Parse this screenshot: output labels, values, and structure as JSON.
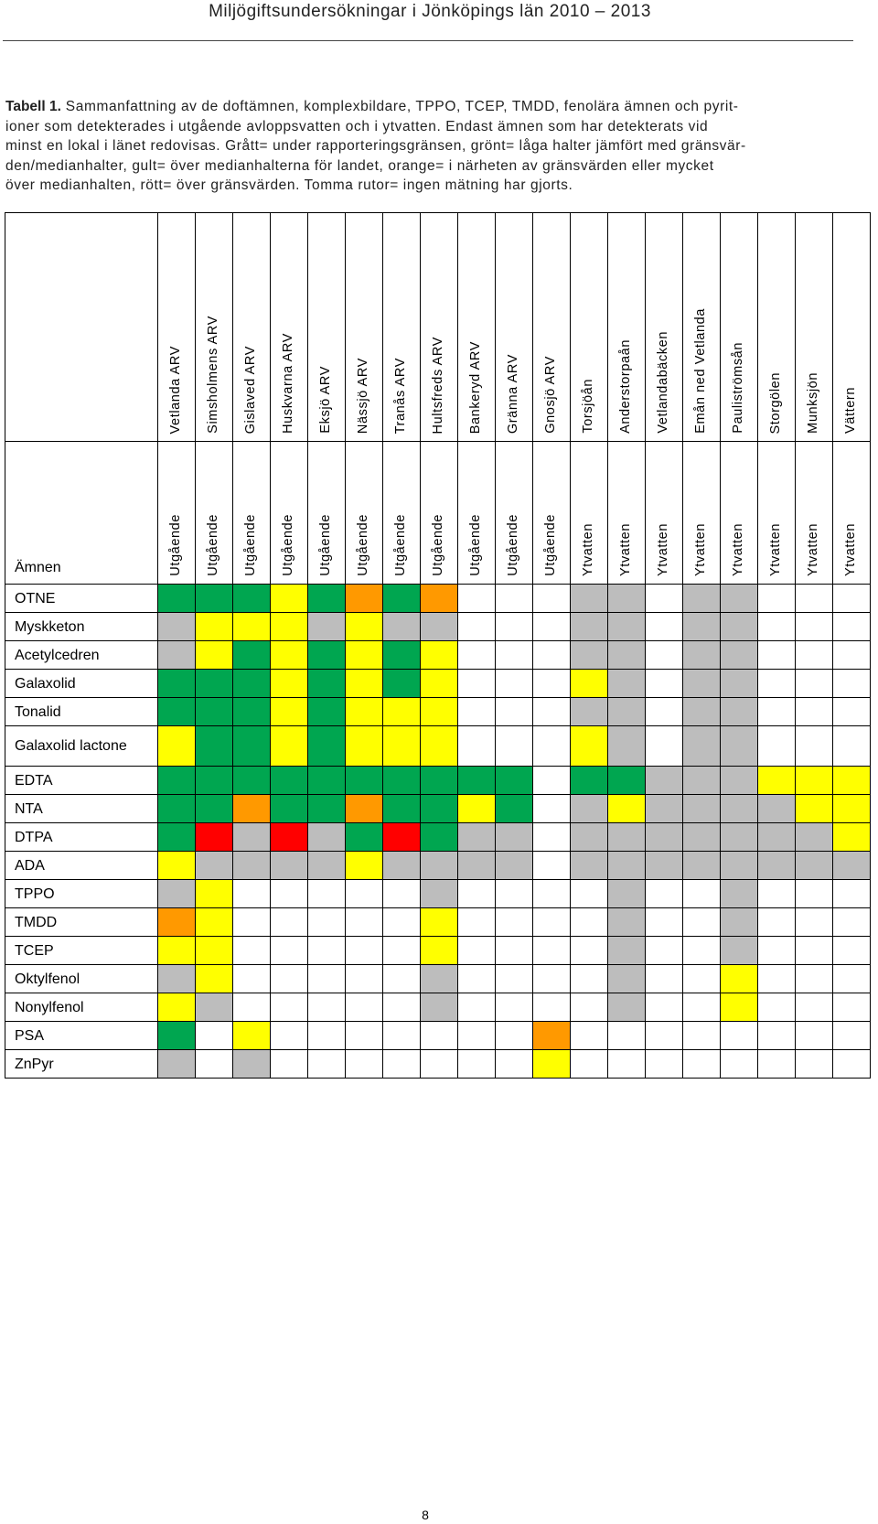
{
  "header": {
    "title": "Miljögiftsundersökningar i Jönköpings län 2010 – 2013"
  },
  "caption": {
    "label": "Tabell 1.",
    "lines": [
      " Sammanfattning av de doftämnen, komplexbildare, TPPO, TCEP, TMDD, fenolära ämnen och pyrit-",
      "ioner som detekterades i utgående avloppsvatten och i ytvatten. Endast ämnen som har detekterats vid",
      "minst en lokal i länet redovisas. Grått= under rapporteringsgränsen, grönt= låga halter jämfört med gränsvär-",
      "den/medianhalter, gult= över medianhalterna för landet, orange= i närheten av gränsvärden eller mycket",
      "över medianhalten, rött= över gränsvärden. Tomma rutor= ingen mätning har gjorts."
    ]
  },
  "table": {
    "substance_header": "Ämnen",
    "colors": {
      "G": "#00A650",
      "Y": "#FFFF00",
      "O": "#FF9900",
      "R": "#FF0000",
      "S": "#BDBDBD",
      "W": "#FFFFFF"
    },
    "columns": [
      {
        "site": "Vetlanda ARV",
        "sample": "Utgående"
      },
      {
        "site": "Simsholmens ARV",
        "sample": "Utgående"
      },
      {
        "site": "Gislaved ARV",
        "sample": "Utgående"
      },
      {
        "site": "Huskvarna ARV",
        "sample": "Utgående"
      },
      {
        "site": "Eksjö ARV",
        "sample": "Utgående"
      },
      {
        "site": "Nässjö ARV",
        "sample": "Utgående"
      },
      {
        "site": "Tranås ARV",
        "sample": "Utgående"
      },
      {
        "site": "Hultsfreds ARV",
        "sample": "Utgående"
      },
      {
        "site": "Bankeryd ARV",
        "sample": "Utgående"
      },
      {
        "site": "Gränna ARV",
        "sample": "Utgående"
      },
      {
        "site": "Gnosjö ARV",
        "sample": "Utgående"
      },
      {
        "site": "Torsjöån",
        "sample": "Ytvatten"
      },
      {
        "site": "Anderstorpaån",
        "sample": "Ytvatten"
      },
      {
        "site": "Vetlandabäcken",
        "sample": "Ytvatten"
      },
      {
        "site": "Emån ned Vetlanda",
        "sample": "Ytvatten"
      },
      {
        "site": "Pauliströmsån",
        "sample": "Ytvatten"
      },
      {
        "site": "Storgölen",
        "sample": "Ytvatten"
      },
      {
        "site": "Munksjön",
        "sample": "Ytvatten"
      },
      {
        "site": "Vättern",
        "sample": "Ytvatten"
      }
    ],
    "rows": [
      {
        "name": "OTNE",
        "cells": [
          "G",
          "G",
          "G",
          "Y",
          "G",
          "O",
          "G",
          "O",
          "W",
          "W",
          "W",
          "S",
          "S",
          "W",
          "S",
          "S",
          "W",
          "W",
          "W"
        ]
      },
      {
        "name": "Myskketon",
        "cells": [
          "S",
          "Y",
          "Y",
          "Y",
          "S",
          "Y",
          "S",
          "S",
          "W",
          "W",
          "W",
          "S",
          "S",
          "W",
          "S",
          "S",
          "W",
          "W",
          "W"
        ]
      },
      {
        "name": "Acetylcedren",
        "cells": [
          "S",
          "Y",
          "G",
          "Y",
          "G",
          "Y",
          "G",
          "Y",
          "W",
          "W",
          "W",
          "S",
          "S",
          "W",
          "S",
          "S",
          "W",
          "W",
          "W"
        ]
      },
      {
        "name": "Galaxolid",
        "cells": [
          "G",
          "G",
          "G",
          "Y",
          "G",
          "Y",
          "G",
          "Y",
          "W",
          "W",
          "W",
          "Y",
          "S",
          "W",
          "S",
          "S",
          "W",
          "W",
          "W"
        ]
      },
      {
        "name": "Tonalid",
        "cells": [
          "G",
          "G",
          "G",
          "Y",
          "G",
          "Y",
          "Y",
          "Y",
          "W",
          "W",
          "W",
          "S",
          "S",
          "W",
          "S",
          "S",
          "W",
          "W",
          "W"
        ]
      },
      {
        "name": "Galaxolid lactone",
        "cells": [
          "Y",
          "G",
          "G",
          "Y",
          "G",
          "Y",
          "Y",
          "Y",
          "W",
          "W",
          "W",
          "Y",
          "S",
          "W",
          "S",
          "S",
          "W",
          "W",
          "W"
        ]
      },
      {
        "name": "EDTA",
        "cells": [
          "G",
          "G",
          "G",
          "G",
          "G",
          "G",
          "G",
          "G",
          "G",
          "G",
          "W",
          "G",
          "G",
          "S",
          "S",
          "S",
          "Y",
          "Y",
          "Y"
        ]
      },
      {
        "name": "NTA",
        "cells": [
          "G",
          "G",
          "O",
          "G",
          "G",
          "O",
          "G",
          "G",
          "Y",
          "G",
          "W",
          "S",
          "Y",
          "S",
          "S",
          "S",
          "S",
          "Y",
          "Y"
        ]
      },
      {
        "name": "DTPA",
        "cells": [
          "G",
          "R",
          "S",
          "R",
          "S",
          "G",
          "R",
          "G",
          "S",
          "S",
          "W",
          "S",
          "S",
          "S",
          "S",
          "S",
          "S",
          "S",
          "Y"
        ]
      },
      {
        "name": "ADA",
        "cells": [
          "Y",
          "S",
          "S",
          "S",
          "S",
          "Y",
          "S",
          "S",
          "S",
          "S",
          "W",
          "S",
          "S",
          "S",
          "S",
          "S",
          "S",
          "S",
          "S"
        ]
      },
      {
        "name": "TPPO",
        "cells": [
          "S",
          "Y",
          "W",
          "W",
          "W",
          "W",
          "W",
          "S",
          "W",
          "W",
          "W",
          "W",
          "S",
          "W",
          "W",
          "S",
          "W",
          "W",
          "W"
        ]
      },
      {
        "name": "TMDD",
        "cells": [
          "O",
          "Y",
          "W",
          "W",
          "W",
          "W",
          "W",
          "Y",
          "W",
          "W",
          "W",
          "W",
          "S",
          "W",
          "W",
          "S",
          "W",
          "W",
          "W"
        ]
      },
      {
        "name": "TCEP",
        "cells": [
          "Y",
          "Y",
          "W",
          "W",
          "W",
          "W",
          "W",
          "Y",
          "W",
          "W",
          "W",
          "W",
          "S",
          "W",
          "W",
          "S",
          "W",
          "W",
          "W"
        ]
      },
      {
        "name": "Oktylfenol",
        "cells": [
          "S",
          "Y",
          "W",
          "W",
          "W",
          "W",
          "W",
          "S",
          "W",
          "W",
          "W",
          "W",
          "S",
          "W",
          "W",
          "Y",
          "W",
          "W",
          "W"
        ]
      },
      {
        "name": "Nonylfenol",
        "cells": [
          "Y",
          "S",
          "W",
          "W",
          "W",
          "W",
          "W",
          "S",
          "W",
          "W",
          "W",
          "W",
          "S",
          "W",
          "W",
          "Y",
          "W",
          "W",
          "W"
        ]
      },
      {
        "name": "PSA",
        "cells": [
          "G",
          "W",
          "Y",
          "W",
          "W",
          "W",
          "W",
          "W",
          "W",
          "W",
          "O",
          "W",
          "W",
          "W",
          "W",
          "W",
          "W",
          "W",
          "W"
        ]
      },
      {
        "name": "ZnPyr",
        "cells": [
          "S",
          "W",
          "S",
          "W",
          "W",
          "W",
          "W",
          "W",
          "W",
          "W",
          "Y",
          "W",
          "W",
          "W",
          "W",
          "W",
          "W",
          "W",
          "W"
        ]
      }
    ]
  },
  "footer": {
    "page_number": "8"
  }
}
